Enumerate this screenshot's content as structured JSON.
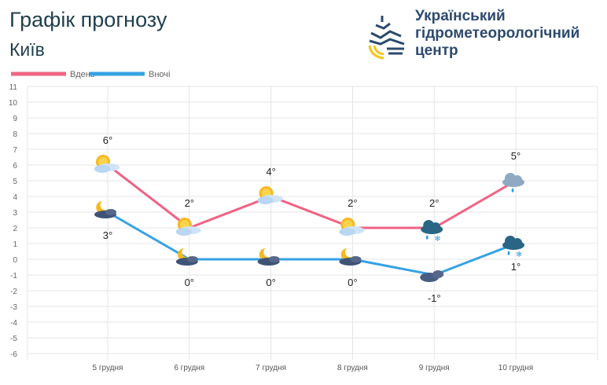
{
  "header": {
    "title": "Графік прогнозу",
    "city": "Київ",
    "org_name": "Український\nгідрометеорологічний\nцентр"
  },
  "colors": {
    "day": "#f06384",
    "night": "#36a2e5"
  },
  "chart_data": {
    "type": "line",
    "categories": [
      "5 грудня",
      "6 грудня",
      "7 грудня",
      "8 грудня",
      "9 грудня",
      "10 грудня"
    ],
    "series": [
      {
        "name": "Вдень",
        "values": [
          6,
          2,
          4,
          2,
          2,
          5
        ],
        "labels": [
          "6°",
          "2°",
          "4°",
          "2°",
          "2°",
          "5°"
        ],
        "icons": [
          "sun-cloud",
          "sun-cloud",
          "sun-cloud",
          "sun-cloud",
          "rain-snow-cloud",
          "rain-cloud"
        ]
      },
      {
        "name": "Вночі",
        "values": [
          3,
          0,
          0,
          0,
          -1,
          1
        ],
        "labels": [
          "3°",
          "0°",
          "0°",
          "0°",
          "-1°",
          "1°"
        ],
        "icons": [
          "moon-cloud",
          "moon-cloud",
          "moon-cloud",
          "moon-cloud",
          "night-cloud",
          "rain-snow-cloud"
        ]
      }
    ],
    "ylim": [
      -6,
      11
    ],
    "yticks": [
      11,
      10,
      9,
      8,
      7,
      6,
      5,
      4,
      3,
      2,
      1,
      0,
      -1,
      -2,
      -3,
      -4,
      -5,
      -6
    ],
    "grid": true,
    "legend": "top-left"
  }
}
